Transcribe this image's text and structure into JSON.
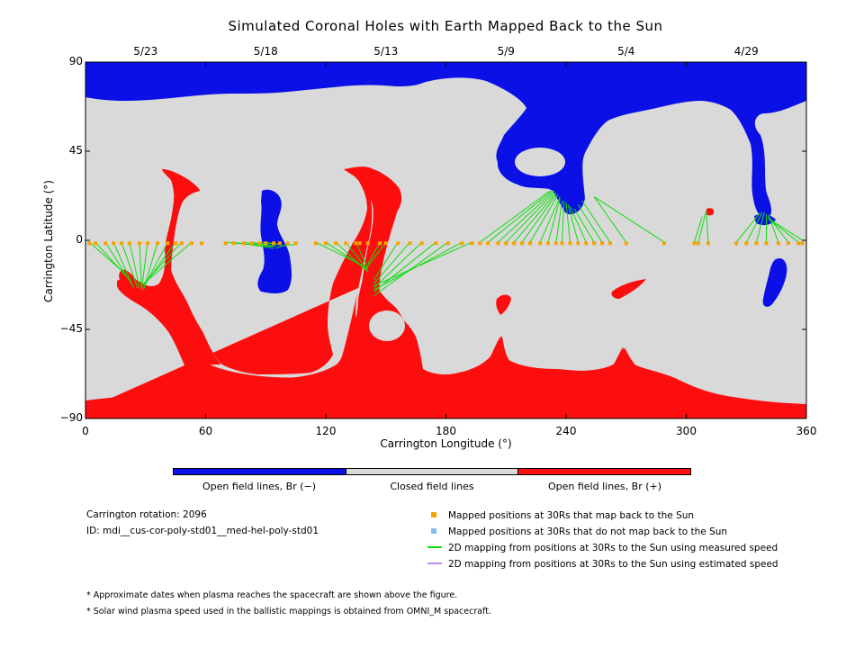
{
  "chart_data": {
    "type": "heatmap",
    "title": "Simulated Coronal Holes with Earth Mapped Back to the Sun",
    "xlabel": "Carrington Longitude (°)",
    "ylabel": "Carrington Latitude (°)",
    "xlim": [
      0,
      360
    ],
    "ylim": [
      -90,
      90
    ],
    "x_ticks": [
      "0",
      "60",
      "120",
      "180",
      "240",
      "300",
      "360"
    ],
    "y_ticks": [
      "90",
      "45",
      "0",
      "−45",
      "−90"
    ],
    "x_tick_values": [
      0,
      60,
      120,
      180,
      240,
      300,
      360
    ],
    "y_tick_values": [
      90,
      45,
      0,
      -45,
      -90
    ],
    "top_dates": [
      {
        "label": "5/23",
        "lon": 30
      },
      {
        "label": "5/18",
        "lon": 90
      },
      {
        "label": "5/13",
        "lon": 150
      },
      {
        "label": "5/9",
        "lon": 210
      },
      {
        "label": "5/4",
        "lon": 270
      },
      {
        "label": "4/29",
        "lon": 330
      }
    ],
    "colorbar": [
      {
        "label": "Open field lines, Br (−)",
        "color": "#0a10e6"
      },
      {
        "label": "Closed field lines",
        "color": "#d9d9d9"
      },
      {
        "label": "Open field lines, Br (+)",
        "color": "#fc0e0e"
      }
    ],
    "mapped_positions_lon": [
      2,
      5,
      10,
      14,
      18,
      22,
      27,
      31,
      36,
      41,
      45,
      48,
      53,
      58,
      70,
      74,
      79,
      83,
      87,
      90,
      94,
      97,
      101,
      105,
      115,
      120,
      125,
      130,
      135,
      137,
      141,
      147,
      150,
      156,
      162,
      168,
      175,
      181,
      188,
      193,
      197,
      201,
      206,
      210,
      214,
      218,
      222,
      227,
      231,
      235,
      238,
      242,
      246,
      250,
      254,
      258,
      262,
      270,
      289,
      304,
      306,
      311,
      325,
      330,
      335,
      340,
      346,
      351,
      356,
      358
    ],
    "mappings": [
      {
        "from": [
          2,
          -1
        ],
        "to": [
          20,
          -17
        ]
      },
      {
        "from": [
          5,
          -1
        ],
        "to": [
          22,
          -20
        ]
      },
      {
        "from": [
          10,
          -1
        ],
        "to": [
          23,
          -22
        ]
      },
      {
        "from": [
          14,
          -1
        ],
        "to": [
          24,
          -24
        ]
      },
      {
        "from": [
          18,
          -1
        ],
        "to": [
          26,
          -24
        ]
      },
      {
        "from": [
          22,
          -1
        ],
        "to": [
          27,
          -24
        ]
      },
      {
        "from": [
          27,
          -1
        ],
        "to": [
          28,
          -24
        ]
      },
      {
        "from": [
          31,
          -1
        ],
        "to": [
          28,
          -25
        ]
      },
      {
        "from": [
          36,
          -1
        ],
        "to": [
          29,
          -25
        ]
      },
      {
        "from": [
          41,
          -1
        ],
        "to": [
          29,
          -24
        ]
      },
      {
        "from": [
          45,
          -1
        ],
        "to": [
          29,
          -23
        ]
      },
      {
        "from": [
          48,
          -1
        ],
        "to": [
          29,
          -22
        ]
      },
      {
        "from": [
          53,
          -1
        ],
        "to": [
          29,
          -22
        ]
      },
      {
        "from": [
          70,
          -1
        ],
        "to": [
          93,
          -3
        ]
      },
      {
        "from": [
          74,
          -1
        ],
        "to": [
          94,
          -4
        ]
      },
      {
        "from": [
          79,
          -1
        ],
        "to": [
          94,
          -3
        ]
      },
      {
        "from": [
          83,
          -1
        ],
        "to": [
          95,
          -3
        ]
      },
      {
        "from": [
          87,
          -1
        ],
        "to": [
          96,
          -2
        ]
      },
      {
        "from": [
          90,
          -1
        ],
        "to": [
          96,
          -2
        ]
      },
      {
        "from": [
          101,
          -2
        ],
        "to": [
          95,
          -4
        ]
      },
      {
        "from": [
          105,
          -2
        ],
        "to": [
          97,
          -3
        ]
      },
      {
        "from": [
          115,
          -1
        ],
        "to": [
          141,
          -14
        ]
      },
      {
        "from": [
          120,
          -1
        ],
        "to": [
          141,
          -15
        ]
      },
      {
        "from": [
          125,
          -1
        ],
        "to": [
          141,
          -16
        ]
      },
      {
        "from": [
          130,
          -1
        ],
        "to": [
          141,
          -15
        ]
      },
      {
        "from": [
          135,
          -1
        ],
        "to": [
          141,
          -14
        ]
      },
      {
        "from": [
          147,
          -1
        ],
        "to": [
          141,
          -12
        ]
      },
      {
        "from": [
          150,
          -1
        ],
        "to": [
          141,
          -13
        ]
      },
      {
        "from": [
          156,
          -1
        ],
        "to": [
          144,
          -20
        ]
      },
      {
        "from": [
          162,
          -1
        ],
        "to": [
          144,
          -22
        ]
      },
      {
        "from": [
          168,
          -1
        ],
        "to": [
          144,
          -24
        ]
      },
      {
        "from": [
          175,
          -1
        ],
        "to": [
          144,
          -26
        ]
      },
      {
        "from": [
          181,
          -1
        ],
        "to": [
          144,
          -28
        ]
      },
      {
        "from": [
          188,
          -1
        ],
        "to": [
          144,
          -25
        ]
      },
      {
        "from": [
          193,
          -1
        ],
        "to": [
          144,
          -23
        ]
      },
      {
        "from": [
          197,
          -1
        ],
        "to": [
          232,
          25
        ]
      },
      {
        "from": [
          201,
          -1
        ],
        "to": [
          233,
          25
        ]
      },
      {
        "from": [
          206,
          -1
        ],
        "to": [
          234,
          25
        ]
      },
      {
        "from": [
          210,
          -1
        ],
        "to": [
          234,
          24
        ]
      },
      {
        "from": [
          214,
          -1
        ],
        "to": [
          235,
          24
        ]
      },
      {
        "from": [
          218,
          -1
        ],
        "to": [
          235,
          23
        ]
      },
      {
        "from": [
          222,
          -1
        ],
        "to": [
          236,
          23
        ]
      },
      {
        "from": [
          227,
          -1
        ],
        "to": [
          237,
          22
        ]
      },
      {
        "from": [
          231,
          -1
        ],
        "to": [
          237,
          21
        ]
      },
      {
        "from": [
          235,
          -1
        ],
        "to": [
          238,
          20
        ]
      },
      {
        "from": [
          238,
          -1
        ],
        "to": [
          239,
          20
        ]
      },
      {
        "from": [
          242,
          -1
        ],
        "to": [
          240,
          19
        ]
      },
      {
        "from": [
          246,
          -1
        ],
        "to": [
          241,
          18
        ]
      },
      {
        "from": [
          250,
          -1
        ],
        "to": [
          242,
          17
        ]
      },
      {
        "from": [
          254,
          -1
        ],
        "to": [
          244,
          16
        ]
      },
      {
        "from": [
          258,
          -1
        ],
        "to": [
          246,
          18
        ]
      },
      {
        "from": [
          262,
          -1
        ],
        "to": [
          248,
          20
        ]
      },
      {
        "from": [
          270,
          -1
        ],
        "to": [
          254,
          22
        ]
      },
      {
        "from": [
          289,
          -1
        ],
        "to": [
          254,
          22
        ]
      },
      {
        "from": [
          304,
          -1
        ],
        "to": [
          308,
          12
        ]
      },
      {
        "from": [
          306,
          -1
        ],
        "to": [
          310,
          15
        ]
      },
      {
        "from": [
          311,
          -1
        ],
        "to": [
          310,
          14
        ]
      },
      {
        "from": [
          325,
          -1
        ],
        "to": [
          337,
          14
        ]
      },
      {
        "from": [
          330,
          -1
        ],
        "to": [
          338,
          14
        ]
      },
      {
        "from": [
          335,
          -1
        ],
        "to": [
          339,
          14
        ]
      },
      {
        "from": [
          340,
          -1
        ],
        "to": [
          340,
          13
        ]
      },
      {
        "from": [
          346,
          -1
        ],
        "to": [
          341,
          13
        ]
      },
      {
        "from": [
          351,
          -1
        ],
        "to": [
          341,
          12
        ]
      },
      {
        "from": [
          356,
          -1
        ],
        "to": [
          341,
          11
        ]
      },
      {
        "from": [
          358,
          0
        ],
        "to": [
          341,
          11
        ]
      }
    ]
  },
  "legend": {
    "carrington_rotation": "Carrington rotation: 2096",
    "model_id": "ID: mdi__cus-cor-poly-std01__med-hel-poly-std01",
    "items": [
      {
        "label": "Mapped positions at 30Rs that map back to the Sun",
        "color": "#f5a300",
        "kind": "square"
      },
      {
        "label": "Mapped positions at 30Rs that do not map back to the Sun",
        "color": "#87bdf0",
        "kind": "square"
      },
      {
        "label": "2D mapping from positions at 30Rs to the Sun using measured speed",
        "color": "#11dd11",
        "kind": "line"
      },
      {
        "label": "2D mapping from positions at 30Rs to the Sun using estimated speed",
        "color": "#c18ef0",
        "kind": "line"
      }
    ]
  },
  "notes": [
    "* Approximate dates when plasma reaches the spacecraft are shown above the figure.",
    "* Solar wind plasma speed used in the ballistic mappings is obtained from OMNI_M spacecraft."
  ]
}
